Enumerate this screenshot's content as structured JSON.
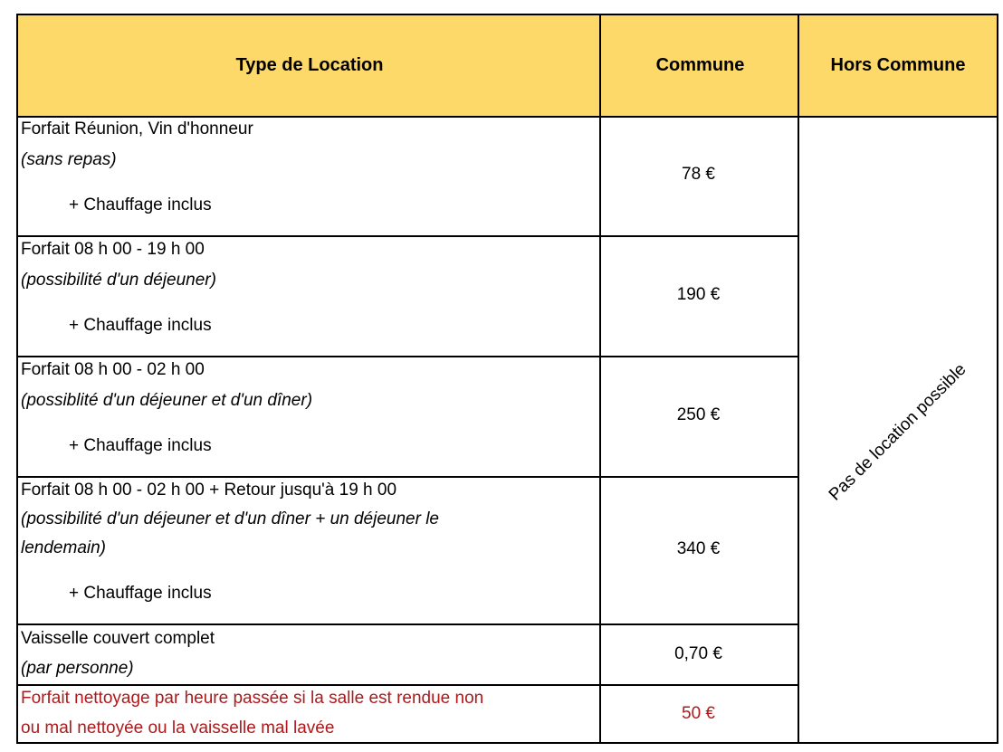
{
  "header": {
    "type": "Type de Location",
    "commune": "Commune",
    "hors_commune": "Hors Commune"
  },
  "header_color": "#fdd969",
  "accent_red": "#b0191b",
  "rows": [
    {
      "title": "Forfait Réunion, Vin d'honneur",
      "note": "(sans repas)",
      "extra": "+ Chauffage inclus",
      "price": "78 €"
    },
    {
      "title": "Forfait 08 h 00 - 19 h 00",
      "note": "(possibilité d'un déjeuner)",
      "extra": "+ Chauffage inclus",
      "price": "190 €"
    },
    {
      "title": "Forfait 08 h 00 - 02 h 00",
      "note": "(possiblité d'un déjeuner et d'un dîner)",
      "extra": "+ Chauffage inclus",
      "price": "250 €"
    },
    {
      "title": "Forfait 08 h 00 - 02 h 00 + Retour jusqu'à 19 h 00",
      "note": "(possibilité d'un déjeuner et d'un dîner + un déjeuner le",
      "note2": "lendemain)",
      "extra": "+ Chauffage inclus",
      "price": "340 €"
    },
    {
      "title": "Vaisselle couvert complet",
      "note": "(par personne)",
      "price": "0,70 €"
    },
    {
      "title": "Forfait nettoyage par heure passée si la salle est rendue non",
      "title2": "ou mal nettoyée ou la vaisselle mal lavée",
      "price": "50 €"
    }
  ],
  "hors_commune_text": "Pas de location possible"
}
